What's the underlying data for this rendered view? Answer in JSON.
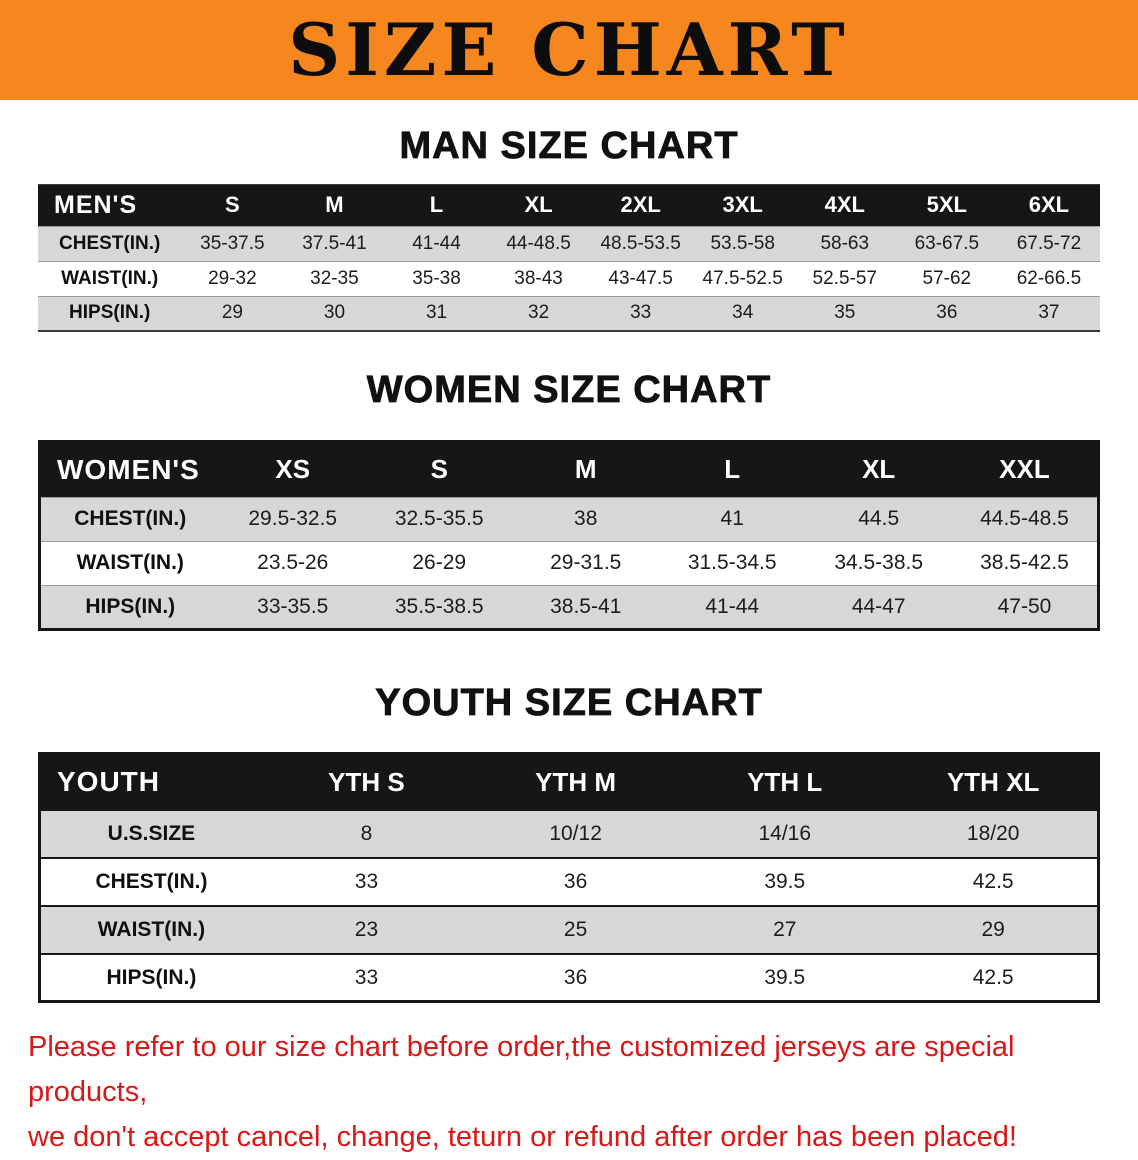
{
  "banner": {
    "title": "SIZE CHART"
  },
  "sections": [
    {
      "heading": "MAN SIZE CHART",
      "table": {
        "header": [
          "MEN'S",
          "S",
          "M",
          "L",
          "XL",
          "2XL",
          "3XL",
          "4XL",
          "5XL",
          "6XL"
        ],
        "rows": [
          [
            "CHEST(IN.)",
            "35-37.5",
            "37.5-41",
            "41-44",
            "44-48.5",
            "48.5-53.5",
            "53.5-58",
            "58-63",
            "63-67.5",
            "67.5-72"
          ],
          [
            "WAIST(IN.)",
            "29-32",
            "32-35",
            "35-38",
            "38-43",
            "43-47.5",
            "47.5-52.5",
            "52.5-57",
            "57-62",
            "62-66.5"
          ],
          [
            "HIPS(IN.)",
            "29",
            "30",
            "31",
            "32",
            "33",
            "34",
            "35",
            "36",
            "37"
          ]
        ]
      }
    },
    {
      "heading": "WOMEN SIZE CHART",
      "table": {
        "header": [
          "WOMEN'S",
          "XS",
          "S",
          "M",
          "L",
          "XL",
          "XXL"
        ],
        "rows": [
          [
            "CHEST(IN.)",
            "29.5-32.5",
            "32.5-35.5",
            "38",
            "41",
            "44.5",
            "44.5-48.5"
          ],
          [
            "WAIST(IN.)",
            "23.5-26",
            "26-29",
            "29-31.5",
            "31.5-34.5",
            "34.5-38.5",
            "38.5-42.5"
          ],
          [
            "HIPS(IN.)",
            "33-35.5",
            "35.5-38.5",
            "38.5-41",
            "41-44",
            "44-47",
            "47-50"
          ]
        ]
      }
    },
    {
      "heading": "YOUTH SIZE CHART",
      "table": {
        "header": [
          "YOUTH",
          "YTH S",
          "YTH M",
          "YTH L",
          "YTH XL"
        ],
        "rows": [
          [
            "U.S.SIZE",
            "8",
            "10/12",
            "14/16",
            "18/20"
          ],
          [
            "CHEST(IN.)",
            "33",
            "36",
            "39.5",
            "42.5"
          ],
          [
            "WAIST(IN.)",
            "23",
            "25",
            "27",
            "29"
          ],
          [
            "HIPS(IN.)",
            "33",
            "36",
            "39.5",
            "42.5"
          ]
        ]
      }
    }
  ],
  "footer": {
    "line1": "Please refer to our size chart before order,the customized jerseys are special products,",
    "line2": "we don't accept cancel, change, teturn or refund after order has been placed!"
  },
  "colors": {
    "banner_orange": "#f6871f",
    "header_black": "#161616",
    "row_gray": "#d7d7d7",
    "footer_red": "#d91717"
  }
}
